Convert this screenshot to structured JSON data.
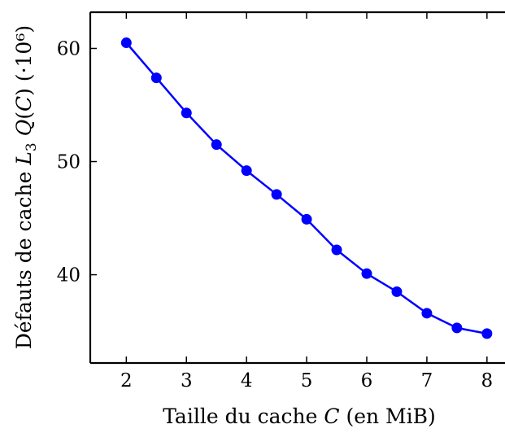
{
  "chart_data": {
    "type": "line",
    "title": "",
    "xlabel": "Taille du cache C (en MiB)",
    "ylabel": "Défauts de cache L3 Q(C) (·10⁶)",
    "xlim": [
      1.4,
      8.3
    ],
    "ylim": [
      32.2,
      63.2
    ],
    "grid": false,
    "xticks": [
      2,
      3,
      4,
      5,
      6,
      7,
      8
    ],
    "xtick_labels": [
      "2",
      "3",
      "4",
      "5",
      "6",
      "7",
      "8"
    ],
    "yticks": [
      40,
      50,
      60
    ],
    "ytick_labels": [
      "40",
      "50",
      "60"
    ],
    "series": [
      {
        "color": "#0000ff",
        "marker": "circle",
        "x": [
          2,
          2.5,
          3,
          3.5,
          4,
          4.5,
          5,
          5.5,
          6,
          6.5,
          7,
          7.5,
          8
        ],
        "y": [
          60.5,
          57.4,
          54.3,
          51.5,
          49.2,
          47.1,
          44.9,
          42.2,
          40.1,
          38.5,
          36.6,
          35.3,
          34.8
        ]
      }
    ]
  }
}
